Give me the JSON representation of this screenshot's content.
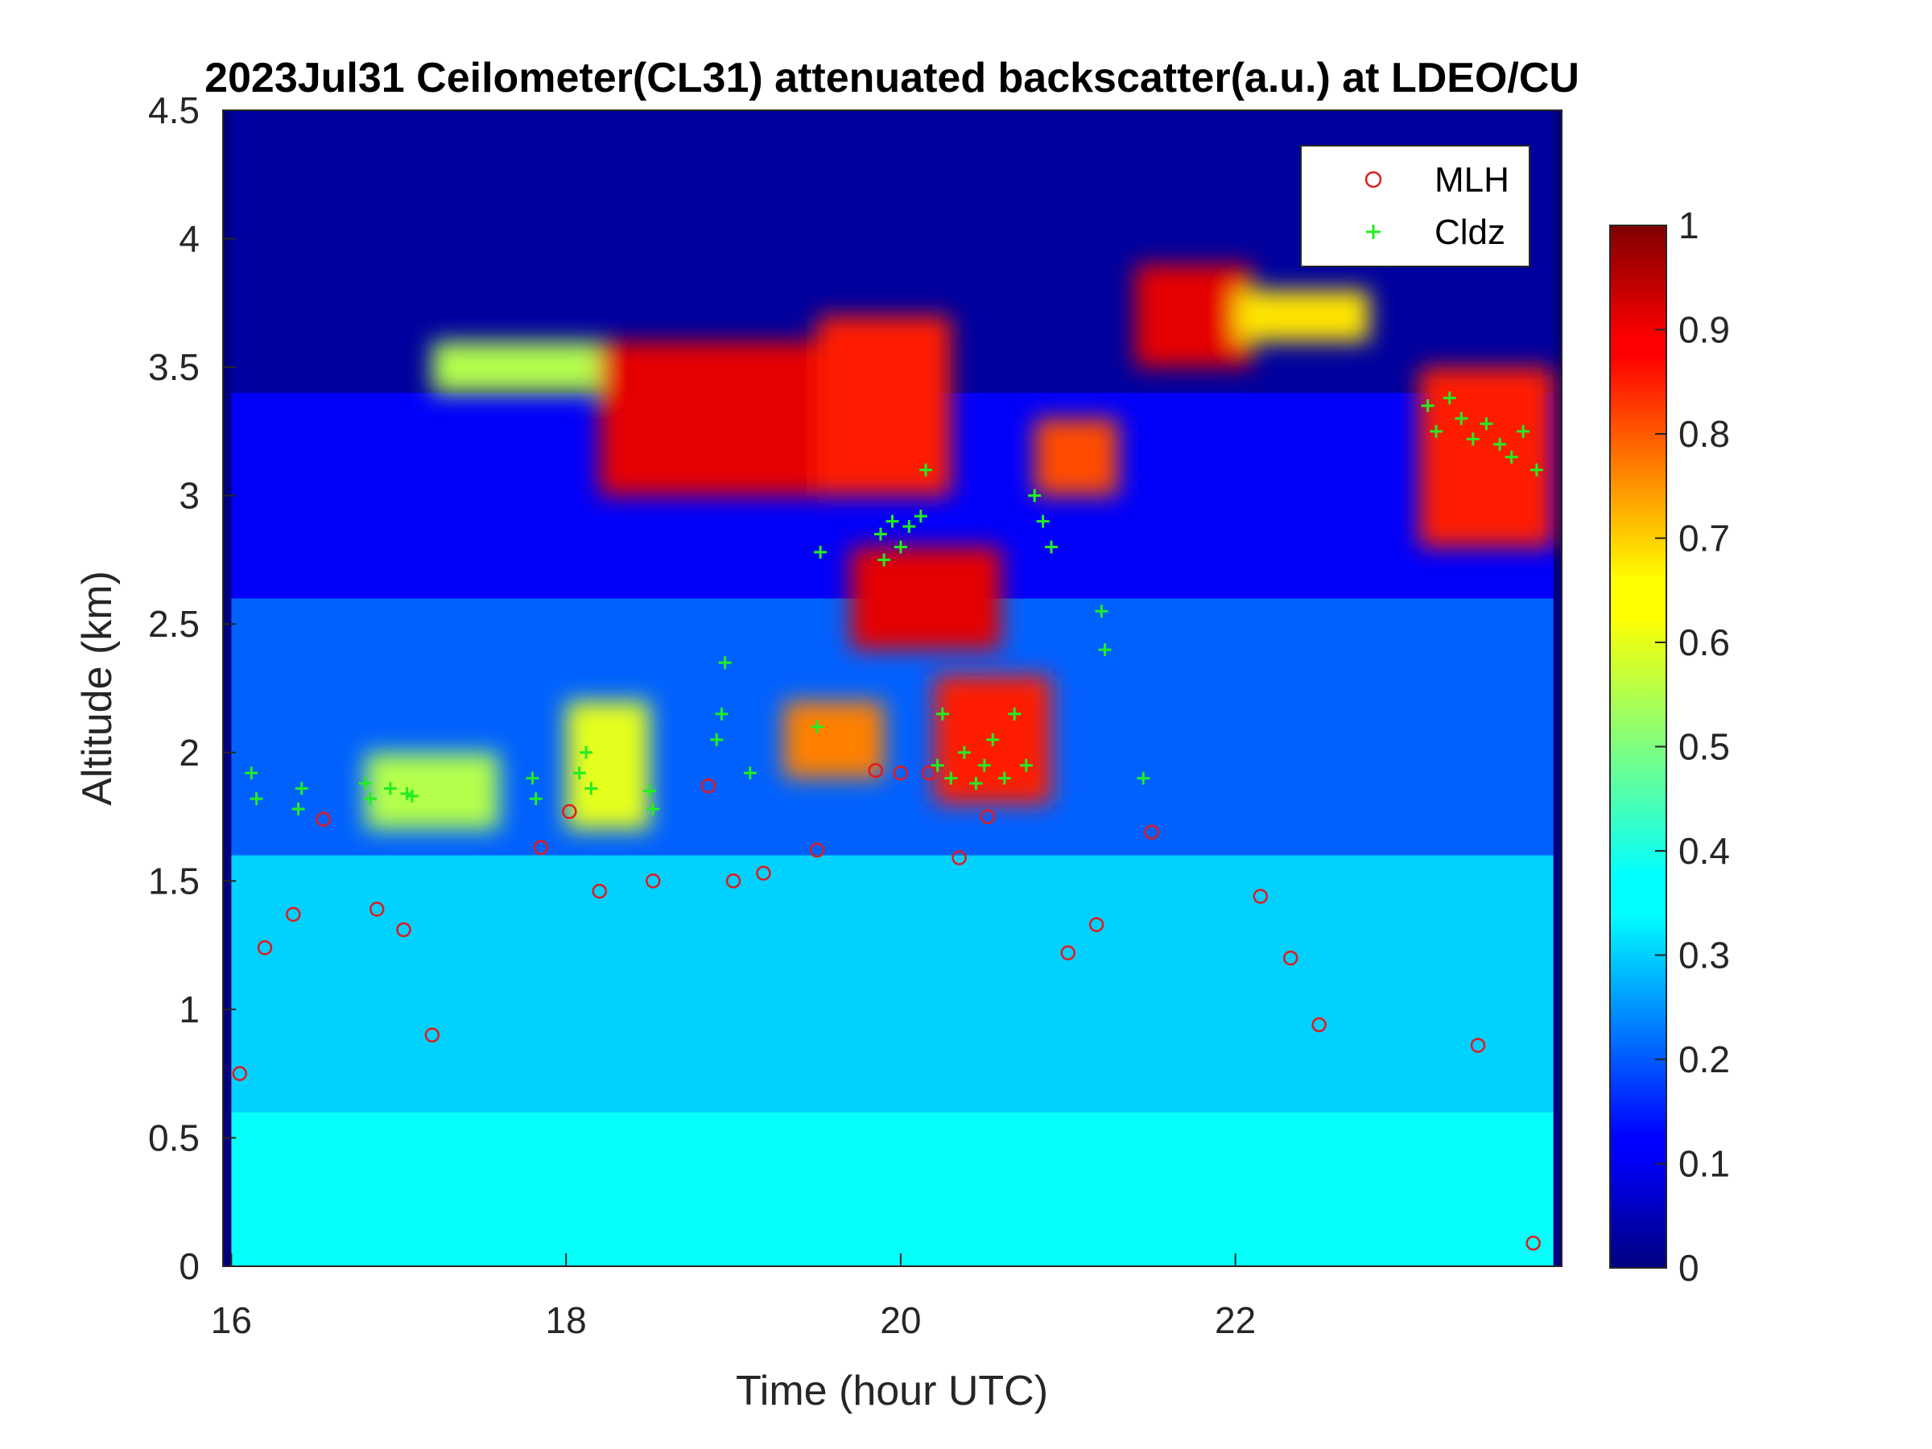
{
  "chart_data": {
    "type": "heatmap",
    "title": "2023Jul31 Ceilometer(CL31) attenuated backscatter(a.u.) at LDEO/CU",
    "xlabel": "Time (hour UTC)",
    "ylabel": "Altitude (km)",
    "xlim": [
      15.95,
      23.95
    ],
    "ylim": [
      0,
      4.5
    ],
    "xticks": [
      16,
      18,
      20,
      22
    ],
    "xtick_labels": [
      "16",
      "18",
      "20",
      "22"
    ],
    "yticks": [
      0,
      0.5,
      1,
      1.5,
      2,
      2.5,
      3,
      3.5,
      4,
      4.5
    ],
    "ytick_labels": [
      "0",
      "0.5",
      "1",
      "1.5",
      "2",
      "2.5",
      "3",
      "3.5",
      "4",
      "4.5"
    ],
    "colorbar": {
      "colormap": "jet",
      "range": [
        0,
        1
      ],
      "ticks": [
        0,
        0.1,
        0.2,
        0.3,
        0.4,
        0.5,
        0.6,
        0.7,
        0.8,
        0.9,
        1
      ],
      "tick_labels": [
        "0",
        "0.1",
        "0.2",
        "0.3",
        "0.4",
        "0.5",
        "0.6",
        "0.7",
        "0.8",
        "0.9",
        "1"
      ]
    },
    "legend": {
      "placement": "top-right",
      "entries": [
        {
          "name": "MLH",
          "marker": "circle",
          "color": "#e31a1c"
        },
        {
          "name": "Cldz",
          "marker": "plus",
          "color": "#22ee22"
        }
      ]
    },
    "heatmap_features": [
      {
        "t0": 16.0,
        "t1": 23.9,
        "z0": 0.0,
        "z1": 0.6,
        "value": 0.38
      },
      {
        "t0": 16.0,
        "t1": 23.9,
        "z0": 0.6,
        "z1": 1.6,
        "value": 0.33
      },
      {
        "t0": 16.0,
        "t1": 23.9,
        "z0": 1.6,
        "z1": 2.6,
        "value": 0.22
      },
      {
        "t0": 16.0,
        "t1": 23.9,
        "z0": 2.6,
        "z1": 3.4,
        "value": 0.12
      },
      {
        "t0": 16.0,
        "t1": 23.9,
        "z0": 3.4,
        "z1": 4.5,
        "value": 0.03
      },
      {
        "t0": 16.8,
        "t1": 17.6,
        "z0": 1.7,
        "z1": 2.0,
        "value": 0.55
      },
      {
        "t0": 18.0,
        "t1": 18.5,
        "z0": 1.7,
        "z1": 2.2,
        "value": 0.6
      },
      {
        "t0": 18.2,
        "t1": 19.6,
        "z0": 3.0,
        "z1": 3.6,
        "value": 0.9
      },
      {
        "t0": 19.5,
        "t1": 20.3,
        "z0": 3.0,
        "z1": 3.7,
        "value": 0.85
      },
      {
        "t0": 19.7,
        "t1": 20.6,
        "z0": 2.4,
        "z1": 2.8,
        "value": 0.9
      },
      {
        "t0": 20.2,
        "t1": 20.9,
        "z0": 1.8,
        "z1": 2.3,
        "value": 0.85
      },
      {
        "t0": 20.8,
        "t1": 21.3,
        "z0": 3.0,
        "z1": 3.3,
        "value": 0.8
      },
      {
        "t0": 21.4,
        "t1": 22.1,
        "z0": 3.5,
        "z1": 3.9,
        "value": 0.9
      },
      {
        "t0": 22.0,
        "t1": 22.8,
        "z0": 3.6,
        "z1": 3.8,
        "value": 0.65
      },
      {
        "t0": 23.1,
        "t1": 23.9,
        "z0": 2.8,
        "z1": 3.5,
        "value": 0.85
      },
      {
        "t0": 17.2,
        "t1": 18.2,
        "z0": 3.4,
        "z1": 3.6,
        "value": 0.55
      },
      {
        "t0": 19.3,
        "t1": 19.9,
        "z0": 1.9,
        "z1": 2.2,
        "value": 0.75
      }
    ],
    "series": [
      {
        "name": "MLH",
        "x": [
          16.05,
          16.2,
          16.37,
          16.55,
          16.87,
          17.03,
          17.2,
          17.85,
          18.02,
          18.2,
          18.52,
          18.85,
          19.0,
          19.18,
          19.5,
          19.85,
          20.0,
          20.17,
          20.35,
          20.52,
          21.0,
          21.17,
          21.5,
          22.15,
          22.33,
          22.5,
          23.45,
          23.78
        ],
        "y": [
          0.75,
          1.24,
          1.37,
          1.74,
          1.39,
          1.31,
          0.9,
          1.63,
          1.77,
          1.46,
          1.5,
          1.87,
          1.5,
          1.53,
          1.62,
          1.93,
          1.92,
          1.92,
          1.59,
          1.75,
          1.22,
          1.33,
          1.69,
          1.44,
          1.2,
          0.94,
          0.86,
          0.09
        ]
      },
      {
        "name": "Cldz",
        "x": [
          16.12,
          16.15,
          16.4,
          16.42,
          16.8,
          16.83,
          16.95,
          17.05,
          17.08,
          17.8,
          17.82,
          18.08,
          18.12,
          18.15,
          18.5,
          18.52,
          18.9,
          18.93,
          18.95,
          19.1,
          19.5,
          19.52,
          19.88,
          19.9,
          19.95,
          20.0,
          20.05,
          20.12,
          20.15,
          20.22,
          20.25,
          20.3,
          20.38,
          20.45,
          20.5,
          20.55,
          20.62,
          20.68,
          20.75,
          20.8,
          20.85,
          20.9,
          21.2,
          21.22,
          21.45,
          23.15,
          23.2,
          23.28,
          23.35,
          23.42,
          23.5,
          23.58,
          23.65,
          23.72,
          23.8
        ],
        "y": [
          1.92,
          1.82,
          1.78,
          1.86,
          1.88,
          1.82,
          1.86,
          1.84,
          1.83,
          1.9,
          1.82,
          1.92,
          2.0,
          1.86,
          1.85,
          1.78,
          2.05,
          2.15,
          2.35,
          1.92,
          2.1,
          2.78,
          2.85,
          2.75,
          2.9,
          2.8,
          2.88,
          2.92,
          3.1,
          1.95,
          2.15,
          1.9,
          2.0,
          1.88,
          1.95,
          2.05,
          1.9,
          2.15,
          1.95,
          3.0,
          2.9,
          2.8,
          2.55,
          2.4,
          1.9,
          3.35,
          3.25,
          3.38,
          3.3,
          3.22,
          3.28,
          3.2,
          3.15,
          3.25,
          3.1
        ]
      }
    ]
  }
}
